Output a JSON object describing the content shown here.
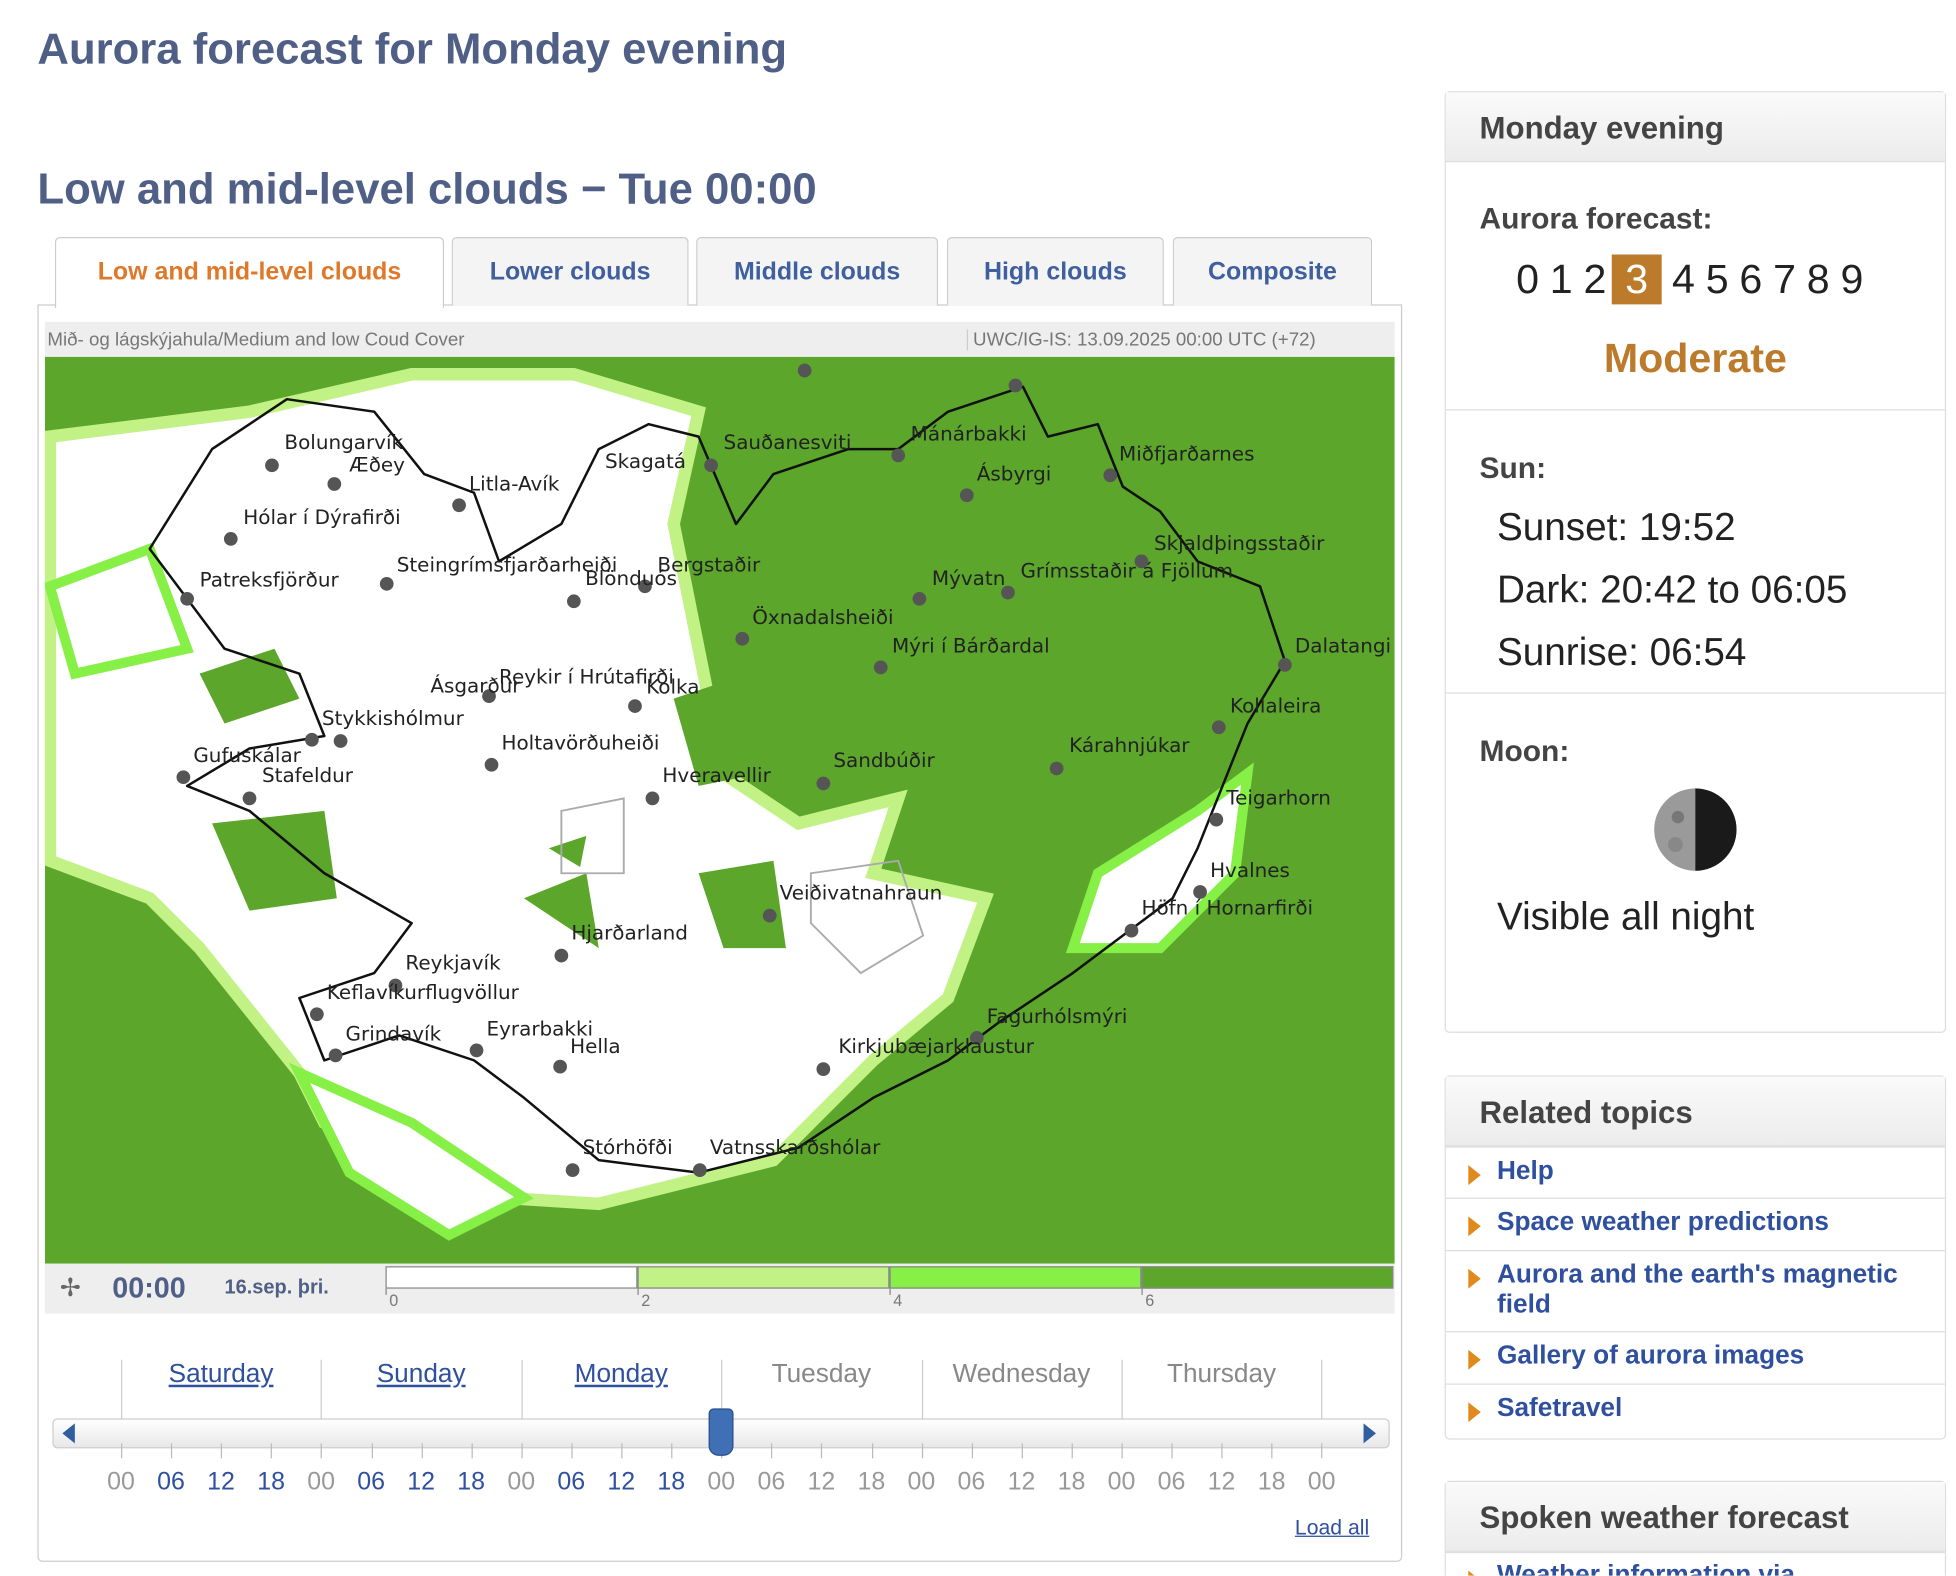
{
  "header": {
    "title": "Aurora forecast for Monday evening"
  },
  "map_panel": {
    "title": "Low and mid-level clouds − Tue 00:00",
    "tabs": [
      "Low and mid-level clouds",
      "Lower clouds",
      "Middle clouds",
      "High clouds",
      "Composite"
    ],
    "active_tab": 0,
    "caption_left": "Mið- og lágskýjahula/Medium and low Coud Cover",
    "caption_right": "UWC/IG-IS: 13.09.2025 00:00 UTC (+72)",
    "places": [
      "Bolungarvík",
      "Æðey",
      "Litla-Avík",
      "Skagatá",
      "Sauðanesviti",
      "Mánárbakki",
      "Ásbyrgi",
      "Miðfjarðarnes",
      "Hólar í Dýrafirði",
      "Steingrímsfjarðarheiði",
      "Bergstaðir",
      "Blönduós",
      "Patreksfjörður",
      "Mývatn",
      "Grímsstaðir á Fjöllum",
      "Skjaldþingsstaðir",
      "Öxnadalsheiði",
      "Mýri í Bárðardal",
      "Dalatangi",
      "Reykir í Hrútafirði",
      "Kolka",
      "Ásgarður",
      "Stykkishólmur",
      "Kollaleira",
      "Holtavörðuheiði",
      "Kárahnjúkar",
      "Gufuskálar",
      "Stafeldur",
      "Sandbúðir",
      "Hveravellir",
      "Teigarhorn",
      "Hvalnes",
      "Veiðivatnahraun",
      "Höfn í Hornarfirði",
      "Hjarðarland",
      "Reykjavík",
      "Keflavíkurflugvöllur",
      "Grindavík",
      "Eyrarbakki",
      "Hella",
      "Fagurhólsmýri",
      "Kirkjubæjarklaustur",
      "Stórhöfði",
      "Vatnsskarðshólar"
    ],
    "time": "00:00",
    "date": "16.sep. þri.",
    "legend": {
      "ticks": [
        0,
        2,
        4,
        6
      ],
      "colors": [
        "#ffffff",
        "#c2f286",
        "#86f046",
        "#5ba62b"
      ]
    },
    "days": [
      {
        "label": "Saturday",
        "link": true
      },
      {
        "label": "Sunday",
        "link": true
      },
      {
        "label": "Monday",
        "link": true
      },
      {
        "label": "Tuesday",
        "link": false
      },
      {
        "label": "Wednesday",
        "link": false
      },
      {
        "label": "Thursday",
        "link": false
      }
    ],
    "hours": [
      "00",
      "06",
      "12",
      "18",
      "00",
      "06",
      "12",
      "18",
      "00",
      "06",
      "12",
      "18",
      "00",
      "06",
      "12",
      "18",
      "00",
      "06",
      "12",
      "18",
      "00",
      "06",
      "12",
      "18",
      "00"
    ],
    "current_hour": 12,
    "load_all": "Load all"
  },
  "sidebar": {
    "forecast_box": {
      "title": "Monday evening",
      "label": "Aurora forecast:",
      "scale": [
        0,
        1,
        2,
        3,
        4,
        5,
        6,
        7,
        8,
        9
      ],
      "level": 3,
      "level_name": "Moderate",
      "sun_label": "Sun:",
      "sunset": "Sunset: 19:52",
      "dark": "Dark: 20:42 to 06:05",
      "sunrise": "Sunrise: 06:54",
      "moon_label": "Moon:",
      "moon_text": "Visible all night"
    },
    "related": {
      "title": "Related topics",
      "links": [
        "Help",
        "Space weather predictions",
        "Aurora and the earth's magnetic field",
        "Gallery of aurora images",
        "Safetravel"
      ]
    },
    "spoken": {
      "title": "Spoken weather forecast",
      "links": [
        "Weather information via"
      ]
    }
  }
}
